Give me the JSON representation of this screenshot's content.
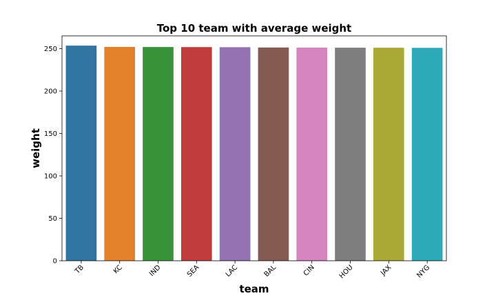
{
  "chart_data": {
    "type": "bar",
    "title": "Top 10 team with average weight",
    "xlabel": "team",
    "ylabel": "weight",
    "categories": [
      "TB",
      "KC",
      "IND",
      "SEA",
      "LAC",
      "BAL",
      "CIN",
      "HOU",
      "JAX",
      "NYG"
    ],
    "values": [
      253.5,
      252.0,
      251.9,
      251.8,
      251.7,
      251.3,
      251.2,
      251.1,
      251.0,
      250.9
    ],
    "colors": [
      "#3274a1",
      "#e1812c",
      "#3a923a",
      "#c03d3e",
      "#9372b2",
      "#845b53",
      "#d684bd",
      "#7f7f7f",
      "#a9aa35",
      "#2ea9b8"
    ],
    "ylim": [
      0,
      265
    ],
    "yticks": [
      0,
      50,
      100,
      150,
      200,
      250
    ],
    "grid": false,
    "legend": "none"
  }
}
